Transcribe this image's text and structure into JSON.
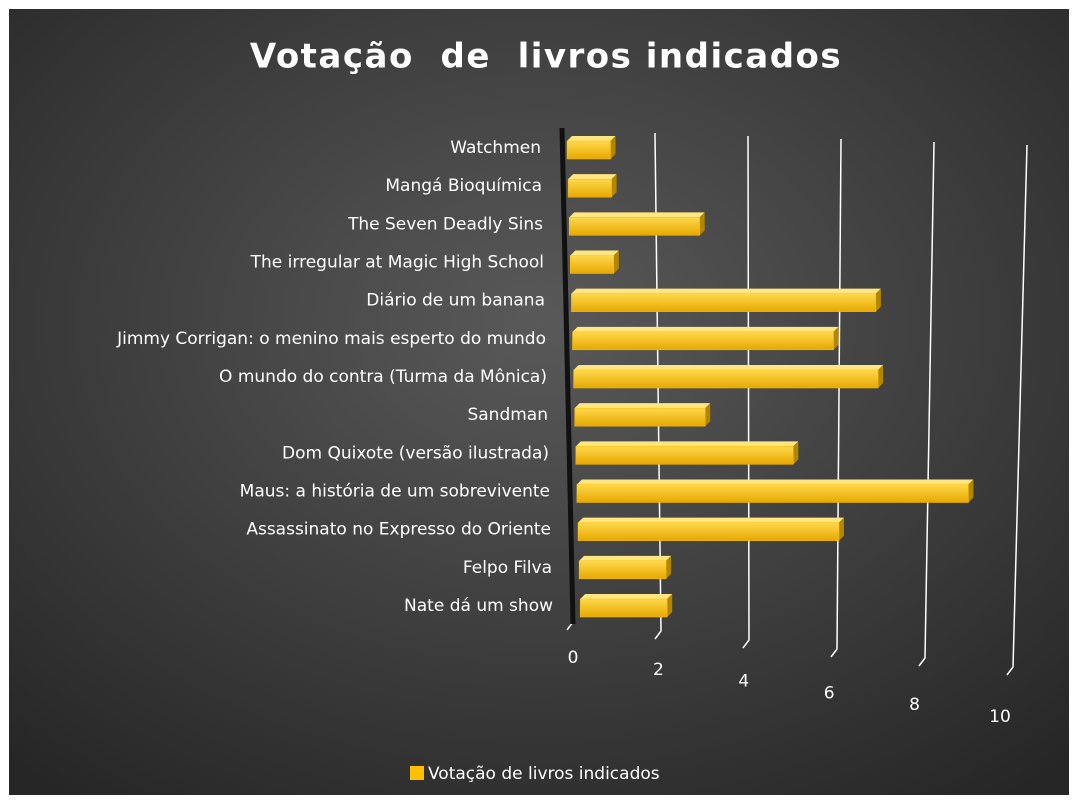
{
  "chart_data": {
    "type": "bar",
    "orientation": "horizontal",
    "title": "Votação  de  livros indicados",
    "categories": [
      "Watchmen",
      "Mangá Bioquímica",
      "The Seven Deadly Sins",
      "The irregular at Magic High School",
      "Diário de um banana",
      "Jimmy Corrigan: o menino mais esperto do mundo",
      "O mundo do contra (Turma da Mônica)",
      "Sandman",
      "Dom Quixote (versão ilustrada)",
      "Maus: a história de um sobrevivente",
      "Assassinato no Expresso do Oriente",
      "Felpo Filva",
      "Nate dá um show"
    ],
    "series": [
      {
        "name": "Votação de livros indicados",
        "color": "#ffc000",
        "values": [
          1,
          1,
          3,
          1,
          7,
          6,
          7,
          3,
          5,
          9,
          6,
          2,
          2
        ]
      }
    ],
    "xlim": [
      0,
      10
    ],
    "xticks": [
      0,
      2,
      4,
      6,
      8,
      10
    ],
    "grid": true,
    "legend": "bottom"
  }
}
